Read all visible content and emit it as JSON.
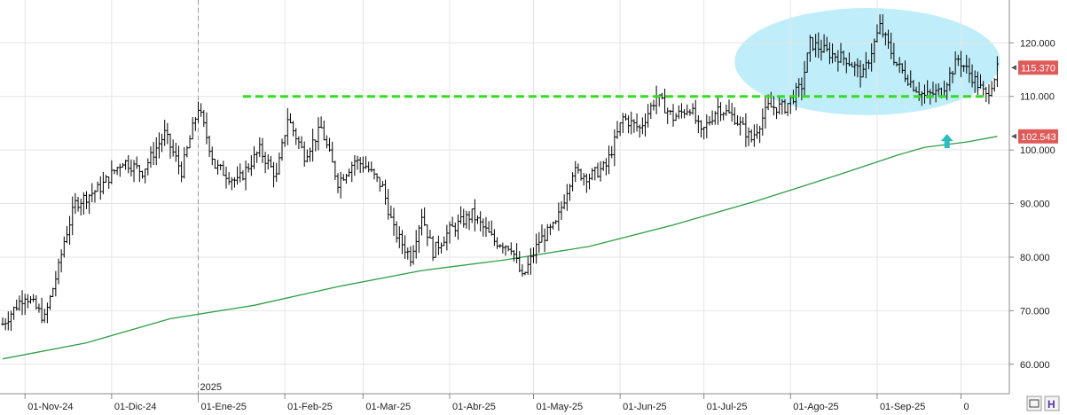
{
  "chart_data": {
    "type": "ohlc-bar",
    "ylim": [
      54.5,
      128
    ],
    "y_ticks": [
      60,
      70,
      80,
      90,
      100,
      110,
      120
    ],
    "y_tick_labels": [
      "60.000",
      "70.000",
      "80.000",
      "90.000",
      "100.000",
      "110.000",
      "120.000"
    ],
    "x_tick_labels": [
      "01-Nov-24",
      "01-Dic-24",
      "01-Ene-25",
      "01-Feb-25",
      "01-Mar-25",
      "01-Abr-25",
      "01-May-25",
      "01-Jun-25",
      "01-Jul-25",
      "01-Ago-25",
      "01-Sep-25",
      "0"
    ],
    "year_label": "2025",
    "last_price": "115.370",
    "ma_last": "102.543",
    "support_level": 110,
    "series": [
      {
        "type": "ohlc",
        "anchors": [
          [
            0,
            67.5
          ],
          [
            8,
            73
          ],
          [
            15,
            68.5
          ],
          [
            20,
            78
          ],
          [
            22,
            83
          ],
          [
            26,
            90
          ],
          [
            35,
            93
          ],
          [
            43,
            98
          ],
          [
            50,
            96
          ],
          [
            58,
            103
          ],
          [
            64,
            96
          ],
          [
            70,
            108
          ],
          [
            76,
            97
          ],
          [
            84,
            94
          ],
          [
            92,
            100
          ],
          [
            98,
            95
          ],
          [
            102,
            106
          ],
          [
            108,
            99
          ],
          [
            114,
            104
          ],
          [
            120,
            94
          ],
          [
            126,
            98
          ],
          [
            130,
            97
          ],
          [
            136,
            93
          ],
          [
            140,
            85
          ],
          [
            146,
            80
          ],
          [
            150,
            88
          ],
          [
            154,
            81
          ],
          [
            160,
            85
          ],
          [
            168,
            88
          ],
          [
            176,
            83
          ],
          [
            182,
            82
          ],
          [
            186,
            76
          ],
          [
            192,
            83
          ],
          [
            198,
            86
          ],
          [
            204,
            96
          ],
          [
            210,
            95
          ],
          [
            216,
            97
          ],
          [
            222,
            106
          ],
          [
            228,
            104
          ],
          [
            234,
            110
          ],
          [
            240,
            106
          ],
          [
            246,
            108
          ],
          [
            250,
            103
          ],
          [
            256,
            108
          ],
          [
            262,
            106
          ],
          [
            268,
            102
          ],
          [
            274,
            108
          ],
          [
            280,
            108
          ],
          [
            286,
            112
          ],
          [
            289,
            120
          ],
          [
            296,
            118
          ],
          [
            302,
            117
          ],
          [
            308,
            114
          ],
          [
            314,
            123
          ],
          [
            320,
            116
          ],
          [
            326,
            112
          ],
          [
            330,
            110
          ],
          [
            336,
            111
          ],
          [
            342,
            117
          ],
          [
            348,
            113
          ],
          [
            352,
            110
          ],
          [
            356,
            115
          ]
        ]
      },
      {
        "type": "moving-average",
        "points": [
          [
            0,
            61
          ],
          [
            30,
            64
          ],
          [
            60,
            68.5
          ],
          [
            90,
            71
          ],
          [
            120,
            74.5
          ],
          [
            150,
            77.5
          ],
          [
            180,
            79.5
          ],
          [
            210,
            82
          ],
          [
            240,
            86
          ],
          [
            270,
            90.5
          ],
          [
            300,
            95.5
          ],
          [
            320,
            99
          ],
          [
            330,
            100.5
          ],
          [
            345,
            101.5
          ],
          [
            356,
            102.543
          ]
        ]
      }
    ],
    "total_bars": 357,
    "x_tick_bars": [
      8,
      39,
      70,
      101,
      129,
      160,
      190,
      221,
      251,
      282,
      313,
      343
    ],
    "year_bar": 70,
    "support_from_bar": 86,
    "support_to_bar": 352,
    "highlight_ellipse": {
      "bar_from": 262,
      "bar_to": 357,
      "y_from": 106.5,
      "y_to": 126.5
    },
    "arrow_bar": 338,
    "arrow_y": 101.5,
    "colors": {
      "bars": "#000000",
      "moving_average": "#2e9e45",
      "support": "#33dd22",
      "highlight": "#bfeefa",
      "arrow": "#2bbcc0",
      "price_tag": "#e05a5a"
    }
  }
}
